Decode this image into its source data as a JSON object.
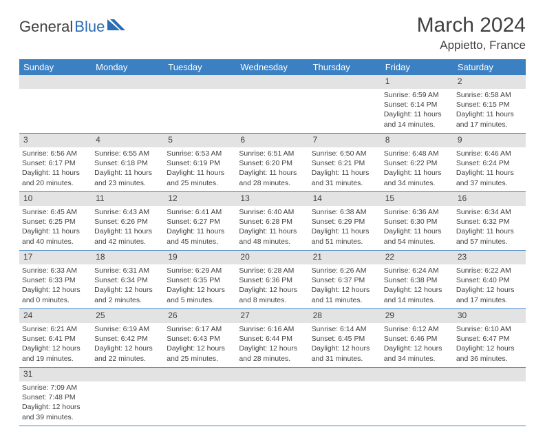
{
  "logo": {
    "word1": "General",
    "word2": "Blue"
  },
  "title": "March 2024",
  "location": "Appietto, France",
  "colors": {
    "header_bg": "#3b80c3",
    "header_fg": "#ffffff",
    "daynum_bg": "#e3e3e3",
    "text": "#404040",
    "rule": "#3b80c3",
    "logo_blue": "#2a6db5"
  },
  "weekdays": [
    "Sunday",
    "Monday",
    "Tuesday",
    "Wednesday",
    "Thursday",
    "Friday",
    "Saturday"
  ],
  "weeks": [
    [
      null,
      null,
      null,
      null,
      null,
      {
        "n": "1",
        "sunrise": "Sunrise: 6:59 AM",
        "sunset": "Sunset: 6:14 PM",
        "day1": "Daylight: 11 hours",
        "day2": "and 14 minutes."
      },
      {
        "n": "2",
        "sunrise": "Sunrise: 6:58 AM",
        "sunset": "Sunset: 6:15 PM",
        "day1": "Daylight: 11 hours",
        "day2": "and 17 minutes."
      }
    ],
    [
      {
        "n": "3",
        "sunrise": "Sunrise: 6:56 AM",
        "sunset": "Sunset: 6:17 PM",
        "day1": "Daylight: 11 hours",
        "day2": "and 20 minutes."
      },
      {
        "n": "4",
        "sunrise": "Sunrise: 6:55 AM",
        "sunset": "Sunset: 6:18 PM",
        "day1": "Daylight: 11 hours",
        "day2": "and 23 minutes."
      },
      {
        "n": "5",
        "sunrise": "Sunrise: 6:53 AM",
        "sunset": "Sunset: 6:19 PM",
        "day1": "Daylight: 11 hours",
        "day2": "and 25 minutes."
      },
      {
        "n": "6",
        "sunrise": "Sunrise: 6:51 AM",
        "sunset": "Sunset: 6:20 PM",
        "day1": "Daylight: 11 hours",
        "day2": "and 28 minutes."
      },
      {
        "n": "7",
        "sunrise": "Sunrise: 6:50 AM",
        "sunset": "Sunset: 6:21 PM",
        "day1": "Daylight: 11 hours",
        "day2": "and 31 minutes."
      },
      {
        "n": "8",
        "sunrise": "Sunrise: 6:48 AM",
        "sunset": "Sunset: 6:22 PM",
        "day1": "Daylight: 11 hours",
        "day2": "and 34 minutes."
      },
      {
        "n": "9",
        "sunrise": "Sunrise: 6:46 AM",
        "sunset": "Sunset: 6:24 PM",
        "day1": "Daylight: 11 hours",
        "day2": "and 37 minutes."
      }
    ],
    [
      {
        "n": "10",
        "sunrise": "Sunrise: 6:45 AM",
        "sunset": "Sunset: 6:25 PM",
        "day1": "Daylight: 11 hours",
        "day2": "and 40 minutes."
      },
      {
        "n": "11",
        "sunrise": "Sunrise: 6:43 AM",
        "sunset": "Sunset: 6:26 PM",
        "day1": "Daylight: 11 hours",
        "day2": "and 42 minutes."
      },
      {
        "n": "12",
        "sunrise": "Sunrise: 6:41 AM",
        "sunset": "Sunset: 6:27 PM",
        "day1": "Daylight: 11 hours",
        "day2": "and 45 minutes."
      },
      {
        "n": "13",
        "sunrise": "Sunrise: 6:40 AM",
        "sunset": "Sunset: 6:28 PM",
        "day1": "Daylight: 11 hours",
        "day2": "and 48 minutes."
      },
      {
        "n": "14",
        "sunrise": "Sunrise: 6:38 AM",
        "sunset": "Sunset: 6:29 PM",
        "day1": "Daylight: 11 hours",
        "day2": "and 51 minutes."
      },
      {
        "n": "15",
        "sunrise": "Sunrise: 6:36 AM",
        "sunset": "Sunset: 6:30 PM",
        "day1": "Daylight: 11 hours",
        "day2": "and 54 minutes."
      },
      {
        "n": "16",
        "sunrise": "Sunrise: 6:34 AM",
        "sunset": "Sunset: 6:32 PM",
        "day1": "Daylight: 11 hours",
        "day2": "and 57 minutes."
      }
    ],
    [
      {
        "n": "17",
        "sunrise": "Sunrise: 6:33 AM",
        "sunset": "Sunset: 6:33 PM",
        "day1": "Daylight: 12 hours",
        "day2": "and 0 minutes."
      },
      {
        "n": "18",
        "sunrise": "Sunrise: 6:31 AM",
        "sunset": "Sunset: 6:34 PM",
        "day1": "Daylight: 12 hours",
        "day2": "and 2 minutes."
      },
      {
        "n": "19",
        "sunrise": "Sunrise: 6:29 AM",
        "sunset": "Sunset: 6:35 PM",
        "day1": "Daylight: 12 hours",
        "day2": "and 5 minutes."
      },
      {
        "n": "20",
        "sunrise": "Sunrise: 6:28 AM",
        "sunset": "Sunset: 6:36 PM",
        "day1": "Daylight: 12 hours",
        "day2": "and 8 minutes."
      },
      {
        "n": "21",
        "sunrise": "Sunrise: 6:26 AM",
        "sunset": "Sunset: 6:37 PM",
        "day1": "Daylight: 12 hours",
        "day2": "and 11 minutes."
      },
      {
        "n": "22",
        "sunrise": "Sunrise: 6:24 AM",
        "sunset": "Sunset: 6:38 PM",
        "day1": "Daylight: 12 hours",
        "day2": "and 14 minutes."
      },
      {
        "n": "23",
        "sunrise": "Sunrise: 6:22 AM",
        "sunset": "Sunset: 6:40 PM",
        "day1": "Daylight: 12 hours",
        "day2": "and 17 minutes."
      }
    ],
    [
      {
        "n": "24",
        "sunrise": "Sunrise: 6:21 AM",
        "sunset": "Sunset: 6:41 PM",
        "day1": "Daylight: 12 hours",
        "day2": "and 19 minutes."
      },
      {
        "n": "25",
        "sunrise": "Sunrise: 6:19 AM",
        "sunset": "Sunset: 6:42 PM",
        "day1": "Daylight: 12 hours",
        "day2": "and 22 minutes."
      },
      {
        "n": "26",
        "sunrise": "Sunrise: 6:17 AM",
        "sunset": "Sunset: 6:43 PM",
        "day1": "Daylight: 12 hours",
        "day2": "and 25 minutes."
      },
      {
        "n": "27",
        "sunrise": "Sunrise: 6:16 AM",
        "sunset": "Sunset: 6:44 PM",
        "day1": "Daylight: 12 hours",
        "day2": "and 28 minutes."
      },
      {
        "n": "28",
        "sunrise": "Sunrise: 6:14 AM",
        "sunset": "Sunset: 6:45 PM",
        "day1": "Daylight: 12 hours",
        "day2": "and 31 minutes."
      },
      {
        "n": "29",
        "sunrise": "Sunrise: 6:12 AM",
        "sunset": "Sunset: 6:46 PM",
        "day1": "Daylight: 12 hours",
        "day2": "and 34 minutes."
      },
      {
        "n": "30",
        "sunrise": "Sunrise: 6:10 AM",
        "sunset": "Sunset: 6:47 PM",
        "day1": "Daylight: 12 hours",
        "day2": "and 36 minutes."
      }
    ],
    [
      {
        "n": "31",
        "sunrise": "Sunrise: 7:09 AM",
        "sunset": "Sunset: 7:48 PM",
        "day1": "Daylight: 12 hours",
        "day2": "and 39 minutes."
      },
      null,
      null,
      null,
      null,
      null,
      null
    ]
  ]
}
